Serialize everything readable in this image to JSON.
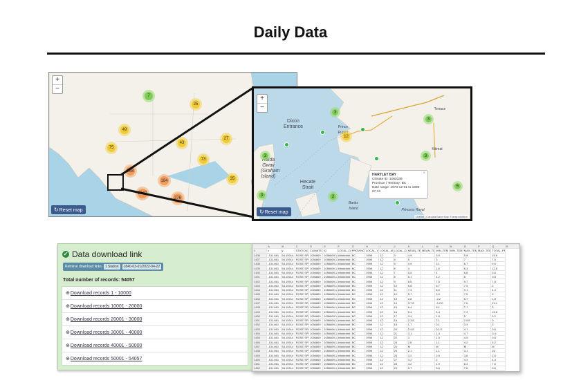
{
  "page": {
    "title": "Daily Data"
  },
  "map_overview": {
    "zoom_in": "+",
    "zoom_out": "−",
    "reset_icon": "refresh-icon",
    "reset_label": "Reset map",
    "attribution": "Leaflet",
    "clusters": [
      {
        "label": "7",
        "color": "green"
      },
      {
        "label": "25",
        "color": "yellow"
      },
      {
        "label": "49",
        "color": "yellow"
      },
      {
        "label": "43",
        "color": "yellow"
      },
      {
        "label": "27",
        "color": "yellow"
      },
      {
        "label": "75",
        "color": "yellow"
      },
      {
        "label": "73",
        "color": "yellow"
      },
      {
        "label": "388",
        "color": "orange"
      },
      {
        "label": "184",
        "color": "orange"
      },
      {
        "label": "35",
        "color": "yellow"
      },
      {
        "label": "3647",
        "color": "orange"
      },
      {
        "label": "276",
        "color": "orange"
      }
    ]
  },
  "map_zoomed": {
    "zoom_in": "+",
    "zoom_out": "−",
    "reset_label": "Reset map",
    "places": [
      "Dixon Entrance",
      "Haida Gwaii (Graham Island)",
      "Hecate Strait",
      "Banks Island",
      "Princess Royal",
      "Terrace",
      "Kitimat",
      "Prince Rupert"
    ],
    "clusters": [
      {
        "label": "3",
        "color": "green"
      },
      {
        "label": "12",
        "color": "yellow"
      },
      {
        "label": "3",
        "color": "green"
      },
      {
        "label": "3",
        "color": "green"
      },
      {
        "label": "3",
        "color": "green"
      },
      {
        "label": "2",
        "color": "green"
      },
      {
        "label": "3",
        "color": "green"
      },
      {
        "label": "5",
        "color": "green"
      }
    ],
    "popup": {
      "name": "HARTLEY BAY",
      "climate_id": "Climate ID: 1063339",
      "province": "Province / Territory: BC",
      "date_range": "Date range: 1973-12-01 to 1990-07-31"
    },
    "attribution": "Leaflet | Canada Base Map Transportation"
  },
  "download_panel": {
    "title": "Data download link",
    "retrieve_label": "Retrieve download links",
    "stations_pill": "1 Station",
    "date_pill": "1840-03-01/2022-04-22",
    "total_label": "Total number of records: 54057",
    "links": [
      "Download records 1 - 10000",
      "Download records 10001 - 20000",
      "Download records 20001 - 30000",
      "Download records 30001 - 40000",
      "Download records 40001 - 50000",
      "Download records 50001 - 54057"
    ]
  },
  "spreadsheet": {
    "col_letters": [
      "",
      "A",
      "B",
      "C",
      "D",
      "E",
      "F",
      "G",
      "H",
      "I",
      "J",
      "K",
      "L",
      "M",
      "N",
      "O",
      "P",
      "Q",
      "R"
    ],
    "headers": [
      "1",
      "x",
      "y",
      "STATION_",
      "CLIMATE_ID",
      "ID",
      "LOCAL_DA",
      "PROVINCE",
      "LOCAL_YE",
      "LOCAL_MO",
      "LOCAL_DA",
      "MEAN_TEM",
      "MEAN_TEM",
      "MIN_TEM",
      "MIN_TEM",
      "MAX_TEM",
      "MAX_TEM",
      "TOTAL_PR"
    ],
    "rows": [
      [
        "1436",
        "-131.661",
        "54.15914",
        "ROSE SPIT",
        "1056869",
        "1056869.1",
        "########",
        "BC",
        "1998",
        "12",
        "3",
        "4.9",
        "",
        "3.9",
        "",
        "5.8",
        "",
        "15.8"
      ],
      [
        "1437",
        "-131.661",
        "54.15914",
        "ROSE SPIT",
        "1056869",
        "1056869.1",
        "########",
        "BC",
        "1998",
        "12",
        "4",
        "5",
        "",
        "3",
        "",
        "7",
        "",
        "7.6"
      ],
      [
        "1438",
        "-131.661",
        "54.15914",
        "ROSE SPIT",
        "1056869",
        "1056869.1",
        "########",
        "BC",
        "1998",
        "12",
        "5",
        "4.9",
        "",
        "3.1",
        "",
        "6.7",
        "",
        "9.6"
      ],
      [
        "1439",
        "-131.661",
        "54.15914",
        "ROSE SPIT",
        "1056869",
        "1056869.1",
        "########",
        "BC",
        "1998",
        "12",
        "6",
        "4",
        "",
        "1.6",
        "",
        "6.3",
        "",
        "12.6"
      ],
      [
        "1440",
        "-131.661",
        "54.15914",
        "ROSE SPIT",
        "1056869",
        "1056869.1",
        "########",
        "BC",
        "1998",
        "12",
        "7",
        "5.5",
        "",
        "4",
        "",
        "6.8",
        "",
        "0.6"
      ],
      [
        "1441",
        "-131.661",
        "54.15914",
        "ROSE SPIT",
        "1056869",
        "1056869.1",
        "########",
        "BC",
        "1998",
        "12",
        "8",
        "6.1",
        "",
        "4.2",
        "",
        "8",
        "",
        "0.8"
      ],
      [
        "1442",
        "-131.661",
        "54.15914",
        "ROSE SPIT",
        "1056869",
        "1056869.1",
        "########",
        "BC",
        "1998",
        "12",
        "9",
        "8.6",
        "",
        "7.5",
        "",
        "9.7",
        "",
        "7.8"
      ],
      [
        "1443",
        "-131.661",
        "54.15914",
        "ROSE SPIT",
        "1056869",
        "1056869.1",
        "########",
        "BC",
        "1998",
        "12",
        "10",
        "6.8",
        "",
        "5.7",
        "",
        "7.9",
        "",
        "2"
      ],
      [
        "1444",
        "-131.661",
        "54.15914",
        "ROSE SPIT",
        "1056869",
        "1056869.1",
        "########",
        "BC",
        "1998",
        "12",
        "11",
        "7.3",
        "",
        "5.5",
        "",
        "9.1",
        "",
        "4.4"
      ],
      [
        "1445",
        "-131.661",
        "54.15914",
        "ROSE SPIT",
        "1056869",
        "1056869.1",
        "########",
        "BC",
        "1998",
        "12",
        "12",
        "5.7",
        "",
        "3.9",
        "",
        "7.5",
        "",
        "0"
      ],
      [
        "1446",
        "-131.661",
        "54.15914",
        "ROSE SPIT",
        "1056869",
        "1056869.1",
        "########",
        "BC",
        "1998",
        "12",
        "13",
        "2.8",
        "",
        "-0.2",
        "",
        "5.7",
        "",
        "1.8"
      ],
      [
        "1447",
        "-131.661",
        "54.15914",
        "ROSE SPIT",
        "1056869",
        "1056869.1",
        "########",
        "BC",
        "1998",
        "12",
        "14",
        "3.7 E",
        "",
        "-0.2 E",
        "",
        "7.6",
        "",
        "11.4"
      ],
      [
        "1448",
        "-131.661",
        "54.15914",
        "ROSE SPIT",
        "1056869",
        "1056869.1",
        "########",
        "BC",
        "1998",
        "12",
        "15",
        "6.4",
        "",
        "5.1",
        "",
        "7.7",
        "",
        "0"
      ],
      [
        "1449",
        "-131.661",
        "54.15914",
        "ROSE SPIT",
        "1056869",
        "1056869.1",
        "########",
        "BC",
        "1998",
        "12",
        "16",
        "5.4",
        "",
        "3.4",
        "",
        "7.3",
        "",
        "15.6"
      ],
      [
        "1450",
        "-131.661",
        "54.15914",
        "ROSE SPIT",
        "1056869",
        "1056869.1",
        "########",
        "BC",
        "1998",
        "12",
        "17",
        "3.4",
        "",
        "1.8",
        "",
        "5",
        "",
        "3.2"
      ],
      [
        "1451",
        "-131.661",
        "54.15914",
        "ROSE SPIT",
        "1056869",
        "1056869.1",
        "########",
        "BC",
        "1998",
        "12",
        "18",
        "2.3 E",
        "",
        "2.1",
        "",
        "2.5 E",
        "",
        "0"
      ],
      [
        "1452",
        "-131.661",
        "54.15914",
        "ROSE SPIT",
        "1056869",
        "1056869.1",
        "########",
        "BC",
        "1998",
        "12",
        "19",
        "1.7",
        "",
        "0.1",
        "",
        "3.3",
        "",
        "0"
      ],
      [
        "1453",
        "-131.661",
        "54.15914",
        "ROSE SPIT",
        "1056869",
        "1056869.1",
        "########",
        "BC",
        "1998",
        "12",
        "20",
        "2.4 E",
        "",
        "0.1 E",
        "",
        "4.7",
        "",
        "0.6"
      ],
      [
        "1454",
        "-131.661",
        "54.15914",
        "ROSE SPIT",
        "1056869",
        "1056869.1",
        "########",
        "BC",
        "1998",
        "12",
        "21",
        "3.1",
        "",
        "1.4",
        "",
        "4.7",
        "",
        "0.4"
      ],
      [
        "1455",
        "-131.661",
        "54.15914",
        "ROSE SPIT",
        "1056869",
        "1056869.1",
        "########",
        "BC",
        "1998",
        "12",
        "22",
        "3",
        "",
        "1.5",
        "",
        "4.5",
        "",
        "0.8"
      ],
      [
        "1456",
        "-131.661",
        "54.15914",
        "ROSE SPIT",
        "1056869",
        "1056869.1",
        "########",
        "BC",
        "1998",
        "12",
        "23",
        "2.8",
        "",
        "1.1",
        "",
        "4.2",
        "",
        "5.2"
      ],
      [
        "1457",
        "-131.661",
        "54.15914",
        "ROSE SPIT",
        "1056869",
        "1056869.1",
        "########",
        "BC",
        "1998",
        "12",
        "24",
        "M",
        "",
        "M",
        "",
        "M",
        "",
        "M"
      ],
      [
        "1458",
        "-131.661",
        "54.15914",
        "ROSE SPIT",
        "1056869",
        "1056869.1",
        "########",
        "BC",
        "1998",
        "12",
        "25",
        "2.1",
        "",
        "1.1",
        "",
        "3.1",
        "",
        "16"
      ],
      [
        "1459",
        "-131.661",
        "54.15914",
        "ROSE SPIT",
        "1056869",
        "1056869.1",
        "########",
        "BC",
        "1998",
        "12",
        "26",
        "3.2",
        "",
        "2.5",
        "",
        "3.8",
        "",
        "2.6"
      ],
      [
        "1460",
        "-131.661",
        "54.15914",
        "ROSE SPIT",
        "1056869",
        "1056869.1",
        "########",
        "BC",
        "1998",
        "12",
        "27",
        "3.2",
        "",
        "2",
        "",
        "4.3",
        "",
        "4.4"
      ],
      [
        "1461",
        "-131.661",
        "54.15914",
        "ROSE SPIT",
        "1056869",
        "1056869.1",
        "########",
        "BC",
        "1998",
        "12",
        "28",
        "4.2",
        "",
        "1.9",
        "",
        "6.4",
        "",
        "7.6"
      ],
      [
        "1462",
        "-131.661",
        "54.15914",
        "ROSE SPIT",
        "1056869",
        "1056869.1",
        "########",
        "BC",
        "1998",
        "12",
        "29",
        "5.7",
        "",
        "3.6",
        "",
        "7.8",
        "",
        "0.6"
      ]
    ]
  }
}
